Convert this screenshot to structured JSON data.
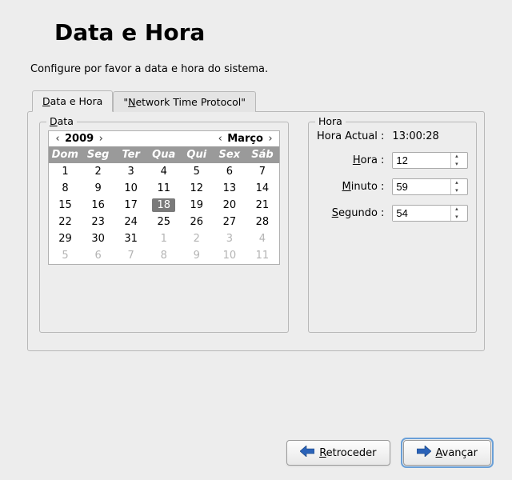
{
  "title": "Data e Hora",
  "description": "Configure por favor a data e hora do sistema.",
  "tabs": {
    "t0": {
      "pre": "",
      "ul": "D",
      "post": "ata e Hora"
    },
    "t1": {
      "pre": "\"",
      "ul": "N",
      "post": "etwork Time Protocol\""
    }
  },
  "data_fs": {
    "legend_ul": "D",
    "legend_post": "ata",
    "year": "2009",
    "month": "Março",
    "dow": [
      "Dom",
      "Seg",
      "Ter",
      "Qua",
      "Qui",
      "Sex",
      "Sáb"
    ],
    "weeks": [
      [
        {
          "d": "1"
        },
        {
          "d": "2"
        },
        {
          "d": "3"
        },
        {
          "d": "4"
        },
        {
          "d": "5"
        },
        {
          "d": "6"
        },
        {
          "d": "7"
        }
      ],
      [
        {
          "d": "8"
        },
        {
          "d": "9"
        },
        {
          "d": "10"
        },
        {
          "d": "11"
        },
        {
          "d": "12"
        },
        {
          "d": "13"
        },
        {
          "d": "14"
        }
      ],
      [
        {
          "d": "15"
        },
        {
          "d": "16"
        },
        {
          "d": "17"
        },
        {
          "d": "18",
          "sel": true
        },
        {
          "d": "19"
        },
        {
          "d": "20"
        },
        {
          "d": "21"
        }
      ],
      [
        {
          "d": "22"
        },
        {
          "d": "23"
        },
        {
          "d": "24"
        },
        {
          "d": "25"
        },
        {
          "d": "26"
        },
        {
          "d": "27"
        },
        {
          "d": "28"
        }
      ],
      [
        {
          "d": "29"
        },
        {
          "d": "30"
        },
        {
          "d": "31"
        },
        {
          "d": "1",
          "other": true
        },
        {
          "d": "2",
          "other": true
        },
        {
          "d": "3",
          "other": true
        },
        {
          "d": "4",
          "other": true
        }
      ],
      [
        {
          "d": "5",
          "other": true
        },
        {
          "d": "6",
          "other": true
        },
        {
          "d": "7",
          "other": true
        },
        {
          "d": "8",
          "other": true
        },
        {
          "d": "9",
          "other": true
        },
        {
          "d": "10",
          "other": true
        },
        {
          "d": "11",
          "other": true
        }
      ]
    ]
  },
  "hora_fs": {
    "legend": "Hora",
    "current_lbl": "Hora Actual :",
    "current_val": "13:00:28",
    "hour_lbl_ul": "H",
    "hour_lbl_post": "ora :",
    "hour_val": "12",
    "min_lbl_ul": "M",
    "min_lbl_post": "inuto :",
    "min_val": "59",
    "sec_lbl_ul": "S",
    "sec_lbl_post": "egundo :",
    "sec_val": "54"
  },
  "buttons": {
    "back_ul": "R",
    "back_post": "etroceder",
    "fwd_ul": "A",
    "fwd_post": "vançar"
  },
  "colors": {
    "accent": "#2a62b8"
  }
}
